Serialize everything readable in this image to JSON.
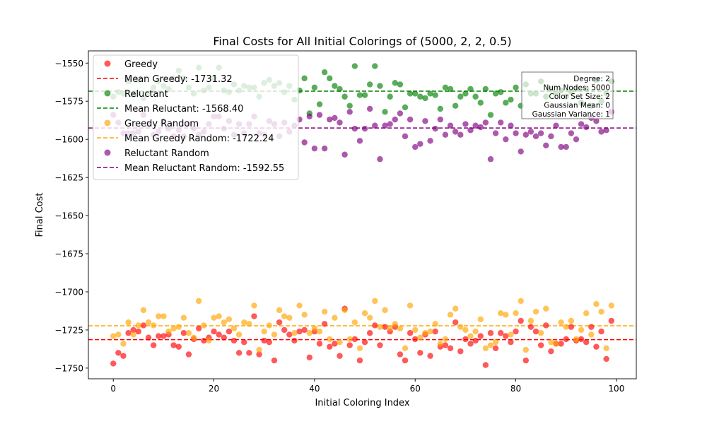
{
  "chart_data": {
    "type": "scatter",
    "title": "Final Costs for All Initial Colorings of (5000, 2, 2, 0.5)",
    "xlabel": "Initial Coloring Index",
    "ylabel": "Final Cost",
    "xlim": [
      -4.95,
      103.95
    ],
    "ylim": [
      -1757,
      -1542
    ],
    "xticks": [
      0,
      20,
      40,
      60,
      80,
      100
    ],
    "yticks": [
      -1550,
      -1575,
      -1600,
      -1625,
      -1650,
      -1675,
      -1700,
      -1725,
      -1750
    ],
    "xtick_labels": [
      "0",
      "20",
      "40",
      "60",
      "80",
      "100"
    ],
    "ytick_labels": [
      "−1550",
      "−1575",
      "−1600",
      "−1625",
      "−1650",
      "−1675",
      "−1700",
      "−1725",
      "−1750"
    ],
    "grid": false,
    "legend_position": "top-left",
    "x": [
      0,
      1,
      2,
      3,
      4,
      5,
      6,
      7,
      8,
      9,
      10,
      11,
      12,
      13,
      14,
      15,
      16,
      17,
      18,
      19,
      20,
      21,
      22,
      23,
      24,
      25,
      26,
      27,
      28,
      29,
      30,
      31,
      32,
      33,
      34,
      35,
      36,
      37,
      38,
      39,
      40,
      41,
      42,
      43,
      44,
      45,
      46,
      47,
      48,
      49,
      50,
      51,
      52,
      53,
      54,
      55,
      56,
      57,
      58,
      59,
      60,
      61,
      62,
      63,
      64,
      65,
      66,
      67,
      68,
      69,
      70,
      71,
      72,
      73,
      74,
      75,
      76,
      77,
      78,
      79,
      80,
      81,
      82,
      83,
      84,
      85,
      86,
      87,
      88,
      89,
      90,
      91,
      92,
      93,
      94,
      95,
      96,
      97,
      98,
      99
    ],
    "series": [
      {
        "name": "Greedy",
        "color": "#ff0000",
        "values": [
          -1747,
          -1740,
          -1742,
          -1727,
          -1725,
          -1726,
          -1722,
          -1730,
          -1735,
          -1729,
          -1729,
          -1728,
          -1735,
          -1736,
          -1727,
          -1741,
          -1731,
          -1724,
          -1732,
          -1730,
          -1726,
          -1728,
          -1730,
          -1726,
          -1732,
          -1740,
          -1733,
          -1740,
          -1716,
          -1741,
          -1732,
          -1733,
          -1745,
          -1720,
          -1725,
          -1728,
          -1732,
          -1726,
          -1725,
          -1743,
          -1726,
          -1734,
          -1721,
          -1736,
          -1734,
          -1742,
          -1711,
          -1735,
          -1731,
          -1745,
          -1733,
          -1727,
          -1722,
          -1735,
          -1723,
          -1726,
          -1723,
          -1741,
          -1745,
          -1727,
          -1731,
          -1740,
          -1728,
          -1742,
          -1726,
          -1736,
          -1735,
          -1737,
          -1720,
          -1739,
          -1731,
          -1734,
          -1732,
          -1729,
          -1748,
          -1727,
          -1737,
          -1727,
          -1729,
          -1733,
          -1726,
          -1719,
          -1745,
          -1723,
          -1726,
          -1735,
          -1722,
          -1739,
          -1734,
          -1734,
          -1731,
          -1723,
          -1732,
          -1731,
          -1733,
          -1723,
          -1736,
          -1726,
          -1744,
          -1719
        ]
      },
      {
        "name": "Reluctant",
        "color": "#008000",
        "values": [
          -1572,
          -1569,
          -1570,
          -1562,
          -1571,
          -1561,
          -1573,
          -1570,
          -1566,
          -1562,
          -1565,
          -1567,
          -1560,
          -1555,
          -1560,
          -1566,
          -1570,
          -1553,
          -1568,
          -1566,
          -1560,
          -1553,
          -1568,
          -1569,
          -1564,
          -1568,
          -1565,
          -1566,
          -1566,
          -1572,
          -1563,
          -1561,
          -1565,
          -1563,
          -1569,
          -1565,
          -1574,
          -1568,
          -1560,
          -1583,
          -1566,
          -1577,
          -1556,
          -1560,
          -1565,
          -1567,
          -1572,
          -1578,
          -1552,
          -1571,
          -1571,
          -1564,
          -1552,
          -1565,
          -1582,
          -1572,
          -1563,
          -1564,
          -1579,
          -1570,
          -1570,
          -1572,
          -1573,
          -1570,
          -1571,
          -1580,
          -1566,
          -1567,
          -1578,
          -1572,
          -1570,
          -1567,
          -1572,
          -1576,
          -1567,
          -1584,
          -1570,
          -1569,
          -1576,
          -1574,
          -1566,
          -1578,
          -1564,
          -1570,
          -1570,
          -1562,
          -1572,
          -1567,
          -1570,
          -1568,
          -1572,
          -1569,
          -1567,
          -1576,
          -1567,
          -1578,
          -1561,
          -1575,
          -1570,
          -1562
        ]
      },
      {
        "name": "Greedy Random",
        "color": "#ffa500",
        "values": [
          -1729,
          -1728,
          -1734,
          -1720,
          -1728,
          -1722,
          -1712,
          -1720,
          -1722,
          -1716,
          -1716,
          -1726,
          -1724,
          -1723,
          -1717,
          -1727,
          -1730,
          -1706,
          -1722,
          -1732,
          -1717,
          -1716,
          -1720,
          -1718,
          -1724,
          -1728,
          -1720,
          -1721,
          -1709,
          -1738,
          -1726,
          -1722,
          -1728,
          -1712,
          -1716,
          -1717,
          -1727,
          -1709,
          -1715,
          -1727,
          -1724,
          -1726,
          -1713,
          -1731,
          -1717,
          -1733,
          -1712,
          -1731,
          -1720,
          -1737,
          -1714,
          -1717,
          -1706,
          -1723,
          -1712,
          -1724,
          -1721,
          -1724,
          -1737,
          -1709,
          -1725,
          -1730,
          -1727,
          -1726,
          -1721,
          -1734,
          -1731,
          -1715,
          -1711,
          -1723,
          -1725,
          -1729,
          -1726,
          -1718,
          -1737,
          -1735,
          -1733,
          -1714,
          -1715,
          -1728,
          -1714,
          -1706,
          -1738,
          -1719,
          -1713,
          -1727,
          -1711,
          -1733,
          -1734,
          -1720,
          -1723,
          -1719,
          -1731,
          -1725,
          -1714,
          -1728,
          -1708,
          -1713,
          -1737,
          -1709
        ]
      },
      {
        "name": "Reluctant Random",
        "color": "#800080",
        "values": [
          -1584,
          -1589,
          -1596,
          -1596,
          -1596,
          -1595,
          -1584,
          -1590,
          -1597,
          -1595,
          -1588,
          -1593,
          -1598,
          -1594,
          -1598,
          -1590,
          -1593,
          -1597,
          -1595,
          -1590,
          -1585,
          -1585,
          -1593,
          -1588,
          -1597,
          -1590,
          -1596,
          -1590,
          -1585,
          -1596,
          -1597,
          -1588,
          -1590,
          -1598,
          -1589,
          -1595,
          -1591,
          -1587,
          -1602,
          -1585,
          -1606,
          -1584,
          -1606,
          -1587,
          -1586,
          -1589,
          -1610,
          -1582,
          -1593,
          -1601,
          -1593,
          -1580,
          -1591,
          -1613,
          -1591,
          -1590,
          -1587,
          -1583,
          -1598,
          -1587,
          -1605,
          -1603,
          -1588,
          -1601,
          -1593,
          -1587,
          -1597,
          -1591,
          -1595,
          -1597,
          -1590,
          -1594,
          -1591,
          -1592,
          -1589,
          -1613,
          -1596,
          -1589,
          -1600,
          -1591,
          -1596,
          -1608,
          -1597,
          -1595,
          -1598,
          -1596,
          -1604,
          -1598,
          -1591,
          -1605,
          -1605,
          -1596,
          -1600,
          -1590,
          -1592,
          -1586,
          -1588,
          -1595,
          -1594,
          -1582
        ]
      }
    ],
    "mean_lines": [
      {
        "name": "Mean Greedy: -1731.32",
        "value": -1731.32,
        "color": "#ff0000"
      },
      {
        "name": "Mean Reluctant: -1568.40",
        "value": -1568.4,
        "color": "#008000"
      },
      {
        "name": "Mean Greedy Random: -1722.24",
        "value": -1722.24,
        "color": "#ffa500"
      },
      {
        "name": "Mean Reluctant Random: -1592.55",
        "value": -1592.55,
        "color": "#800080"
      }
    ],
    "legend_order": [
      {
        "label": "Greedy",
        "kind": "marker",
        "color": "#ff0000"
      },
      {
        "label": "Mean Greedy: -1731.32",
        "kind": "line",
        "color": "#ff0000"
      },
      {
        "label": "Reluctant",
        "kind": "marker",
        "color": "#008000"
      },
      {
        "label": "Mean Reluctant: -1568.40",
        "kind": "line",
        "color": "#008000"
      },
      {
        "label": "Greedy Random",
        "kind": "marker",
        "color": "#ffa500"
      },
      {
        "label": "Mean Greedy Random: -1722.24",
        "kind": "line",
        "color": "#ffa500"
      },
      {
        "label": "Reluctant Random",
        "kind": "marker",
        "color": "#800080"
      },
      {
        "label": "Mean Reluctant Random: -1592.55",
        "kind": "line",
        "color": "#800080"
      }
    ],
    "info_box": {
      "lines": [
        "Degree: 2",
        "Num Nodes: 5000",
        "Color Set Size: 2",
        "Gaussian Mean: 0",
        "Gaussian Variance: 1"
      ],
      "position": "top-right"
    }
  }
}
